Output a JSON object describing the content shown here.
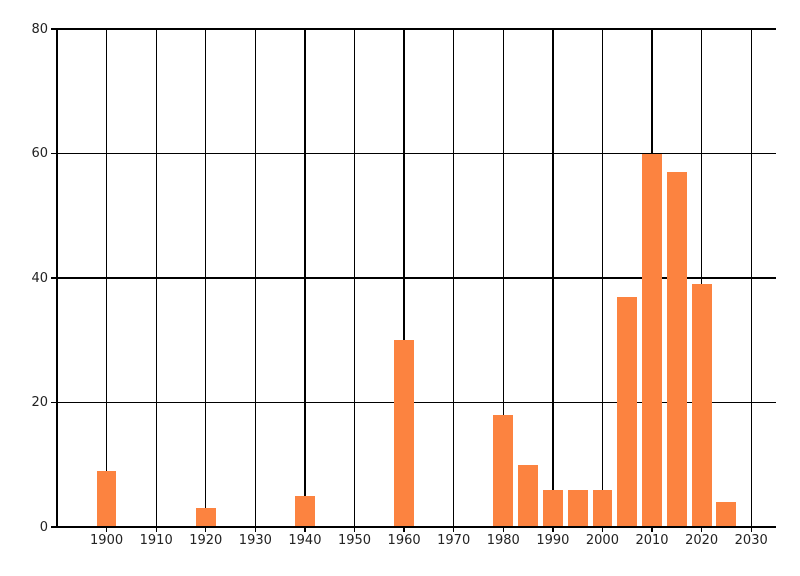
{
  "chart_data": {
    "type": "bar",
    "title": "",
    "xlabel": "",
    "ylabel": "",
    "x": [
      1900,
      1920,
      1940,
      1960,
      1980,
      1985,
      1990,
      1995,
      2000,
      2005,
      2010,
      2015,
      2020,
      2025
    ],
    "values": [
      9,
      3,
      5,
      30,
      18,
      10,
      6,
      6,
      6,
      37,
      60,
      57,
      39,
      4
    ],
    "bar_width_x_units": 4,
    "xlim": [
      1890,
      2035
    ],
    "ylim": [
      0,
      80
    ],
    "x_ticks": [
      1900,
      1910,
      1920,
      1930,
      1940,
      1950,
      1960,
      1970,
      1980,
      1990,
      2000,
      2010,
      2020,
      2030
    ],
    "x_tick_labels": [
      "1900",
      "1910",
      "1920",
      "1930",
      "1940",
      "1950",
      "1960",
      "1970",
      "1980",
      "1990",
      "2000",
      "2010",
      "2020",
      "2030"
    ],
    "y_ticks": [
      0,
      20,
      40,
      60,
      80
    ],
    "y_tick_labels": [
      "0",
      "20",
      "40",
      "60",
      "80"
    ],
    "grid": "both",
    "legend": "none",
    "colors": {
      "bar": "#fc8340",
      "grid": "#000000",
      "axis": "#000000",
      "tick_label": "#222222",
      "background": "#ffffff"
    }
  }
}
